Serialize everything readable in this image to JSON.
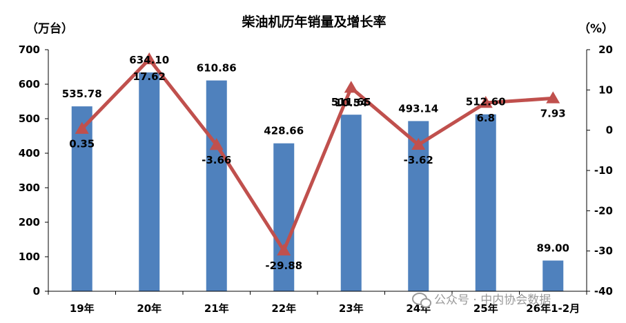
{
  "chart_data": {
    "type": "bar",
    "title": "柴油机历年销量及增长率",
    "y_left_unit": "（万台）",
    "y_right_unit": "（%）",
    "categories": [
      "19年",
      "20年",
      "21年",
      "22年",
      "23年",
      "24年",
      "25年",
      "26年1-2月"
    ],
    "series": [
      {
        "type": "bar",
        "axis": "left",
        "values": [
          535.78,
          634.1,
          610.86,
          428.66,
          511.65,
          493.14,
          512.6,
          89.0
        ],
        "labels": [
          "535.78",
          "634.10",
          "610.86",
          "428.66",
          "511.65",
          "493.14",
          "512.60",
          "89.00"
        ],
        "color": "#4f81bd"
      },
      {
        "type": "line",
        "axis": "right",
        "values": [
          0.35,
          17.62,
          -3.66,
          -29.88,
          10.54,
          -3.62,
          6.8,
          7.93
        ],
        "labels": [
          "0.35",
          "17.62",
          "-3.66",
          "-29.88",
          "10.54",
          "-3.62",
          "6.8",
          "7.93"
        ],
        "color": "#c0504d"
      }
    ],
    "y_left": {
      "range": [
        0,
        700
      ],
      "ticks": [
        "0",
        "100",
        "200",
        "300",
        "400",
        "500",
        "600",
        "700"
      ]
    },
    "y_right": {
      "range": [
        -40,
        20
      ],
      "ticks": [
        "-40",
        "-30",
        "-20",
        "-10",
        "0",
        "10",
        "20"
      ]
    },
    "grid": false,
    "legend": "none"
  },
  "watermark": "公众号 · 中内协会数据"
}
